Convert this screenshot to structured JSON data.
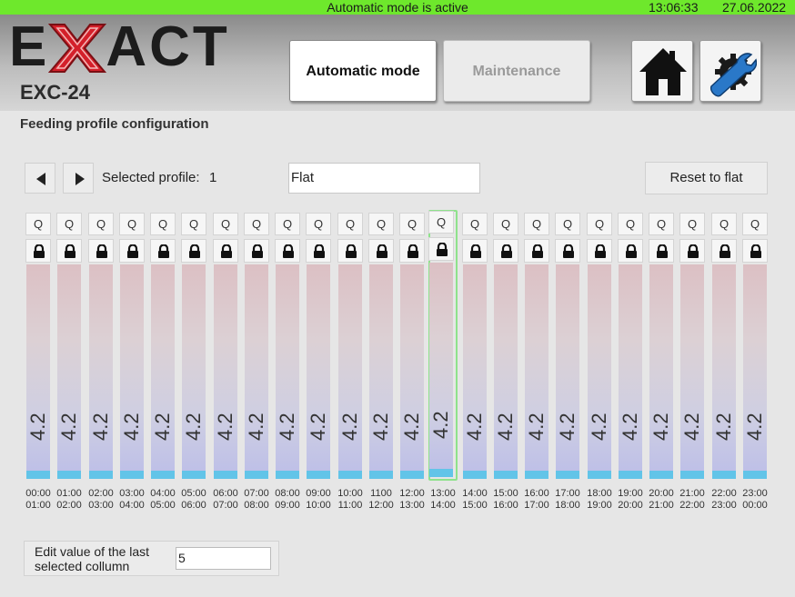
{
  "status": {
    "mode_text": "Automatic mode is active",
    "time": "13:06:33",
    "date": "27.06.2022",
    "bar_color": "#6ee82c"
  },
  "header": {
    "logo_text": "EXACT",
    "model": "EXC-24",
    "auto_mode_label": "Automatic mode",
    "maintenance_label": "Maintenance",
    "home_icon": "home-icon",
    "settings_icon": "settings-wrench-gear-icon"
  },
  "page": {
    "title": "Feeding profile configuration",
    "selected_profile_label": "Selected profile:",
    "selected_profile_value": "1",
    "profile_name": "Flat",
    "reset_label": "Reset to flat"
  },
  "columns": {
    "q_label": "Q",
    "selected_index": 13,
    "items": [
      {
        "value": "4.2",
        "from": "00:00",
        "to": "01:00"
      },
      {
        "value": "4.2",
        "from": "01:00",
        "to": "02:00"
      },
      {
        "value": "4.2",
        "from": "02:00",
        "to": "03:00"
      },
      {
        "value": "4.2",
        "from": "03:00",
        "to": "04:00"
      },
      {
        "value": "4.2",
        "from": "04:00",
        "to": "05:00"
      },
      {
        "value": "4.2",
        "from": "05:00",
        "to": "06:00"
      },
      {
        "value": "4.2",
        "from": "06:00",
        "to": "07:00"
      },
      {
        "value": "4.2",
        "from": "07:00",
        "to": "08:00"
      },
      {
        "value": "4.2",
        "from": "08:00",
        "to": "09:00"
      },
      {
        "value": "4.2",
        "from": "09:00",
        "to": "10:00"
      },
      {
        "value": "4.2",
        "from": "10:00",
        "to": "11:00"
      },
      {
        "value": "4.2",
        "from": "1100",
        "to": "12:00"
      },
      {
        "value": "4.2",
        "from": "12:00",
        "to": "13:00"
      },
      {
        "value": "4.2",
        "from": "13:00",
        "to": "14:00"
      },
      {
        "value": "4.2",
        "from": "14:00",
        "to": "15:00"
      },
      {
        "value": "4.2",
        "from": "15:00",
        "to": "16:00"
      },
      {
        "value": "4.2",
        "from": "16:00",
        "to": "17:00"
      },
      {
        "value": "4.2",
        "from": "17:00",
        "to": "18:00"
      },
      {
        "value": "4.2",
        "from": "18:00",
        "to": "19:00"
      },
      {
        "value": "4.2",
        "from": "19:00",
        "to": "20:00"
      },
      {
        "value": "4.2",
        "from": "20:00",
        "to": "21:00"
      },
      {
        "value": "4.2",
        "from": "21:00",
        "to": "22:00"
      },
      {
        "value": "4.2",
        "from": "22:00",
        "to": "23:00"
      },
      {
        "value": "4.2",
        "from": "23:00",
        "to": "00:00"
      }
    ],
    "fill_fraction": 0.04,
    "selected_border_color": "#8fe28c",
    "fill_color": "#62c4e8"
  },
  "edit": {
    "label": "Edit value of the last selected collumn",
    "value": "5"
  }
}
